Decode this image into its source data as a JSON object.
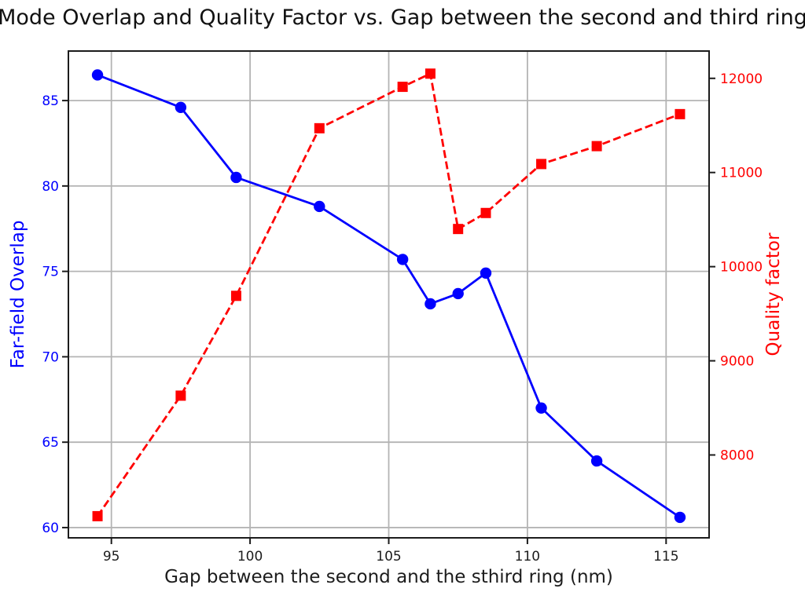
{
  "chart_data": {
    "type": "line",
    "title": "Mode Overlap and Quality Factor vs. Gap between the second and third ring",
    "xlabel": "Gap between the second and the sthird ring (nm)",
    "ylabel_left": "Far-field Overlap",
    "ylabel_right": "Quality factor",
    "x": [
      94.5,
      97.5,
      99.5,
      102.5,
      105.5,
      106.5,
      107.5,
      108.5,
      110.5,
      112.5,
      115.5
    ],
    "series": [
      {
        "name": "Far-field Overlap",
        "axis": "left",
        "color": "#0000ff",
        "line_style": "solid",
        "marker": "circle",
        "values": [
          86.5,
          84.6,
          80.5,
          78.8,
          75.7,
          73.1,
          73.7,
          74.9,
          67.0,
          63.9,
          60.6
        ]
      },
      {
        "name": "Quality factor",
        "axis": "right",
        "color": "#ff0000",
        "line_style": "dashed",
        "marker": "square",
        "values": [
          7350,
          8630,
          9690,
          11470,
          11910,
          12050,
          10400,
          10570,
          11090,
          11280,
          11620
        ]
      }
    ],
    "x_ticks": [
      95,
      100,
      105,
      110,
      115
    ],
    "y_ticks_left": [
      60,
      65,
      70,
      75,
      80,
      85
    ],
    "y_ticks_right": [
      8000,
      9000,
      10000,
      11000,
      12000
    ],
    "xlim": [
      93.45,
      116.55
    ],
    "ylim_left": [
      59.4,
      87.9
    ],
    "ylim_right": [
      7120,
      12290
    ],
    "grid": true,
    "legend": "none",
    "styles": {
      "left_axis_color": "#0000ff",
      "right_axis_color": "#ff0000",
      "tick_label_color": "#1c1c1c",
      "grid_color": "#b4b4b4",
      "spine_color": "#1c1c1c",
      "background": "#ffffff"
    }
  }
}
